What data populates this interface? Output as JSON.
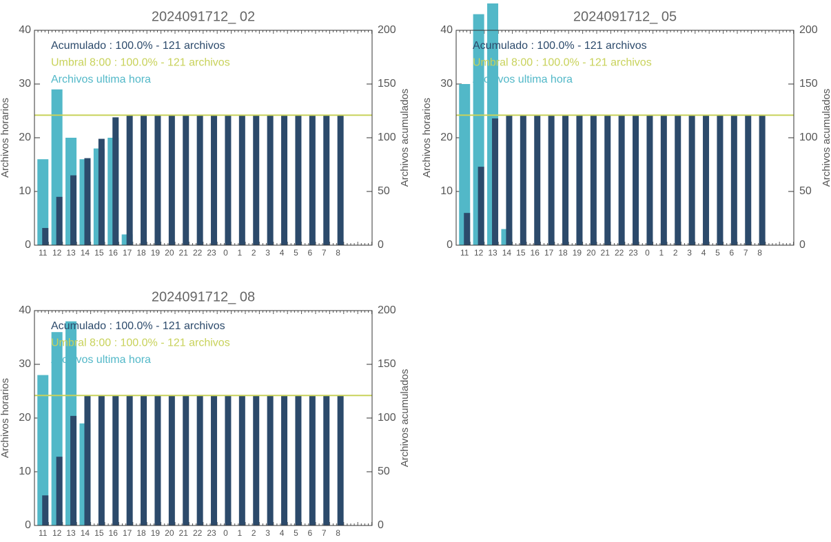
{
  "chart_data": [
    {
      "type": "bar",
      "title": "2024091712_ 02",
      "ylabel": "Archivos horarios",
      "y2label": "Archivos acumulados",
      "categories": [
        "11",
        "12",
        "13",
        "14",
        "15",
        "16",
        "17",
        "18",
        "19",
        "20",
        "21",
        "22",
        "23",
        "0",
        "1",
        "2",
        "3",
        "4",
        "5",
        "6",
        "7",
        "8"
      ],
      "series": [
        {
          "name": "Acumulado : 100.0% - 121 archivos",
          "color": "#2c4a6b",
          "axis": "y2",
          "values": [
            16,
            45,
            65,
            81,
            99,
            119,
            121,
            121,
            121,
            121,
            121,
            121,
            121,
            121,
            121,
            121,
            121,
            121,
            121,
            121,
            121,
            121
          ]
        },
        {
          "name": "Archivos ultima hora",
          "color": "#52b8c8",
          "axis": "y",
          "values": [
            16,
            29,
            20,
            16,
            18,
            20,
            2,
            0,
            0,
            0,
            0,
            0,
            0,
            0,
            0,
            0,
            0,
            0,
            0,
            0,
            0,
            0
          ]
        }
      ],
      "threshold": {
        "name": "Umbral 8:00 : 100.0% - 121 archivos",
        "color": "#c8d25a",
        "axis": "y2",
        "value": 121
      },
      "ylim": [
        0,
        40
      ],
      "yticks": [
        0,
        10,
        20,
        30,
        40
      ],
      "y2lim": [
        0,
        200
      ],
      "y2ticks": [
        0,
        50,
        100,
        150,
        200
      ]
    },
    {
      "type": "bar",
      "title": "2024091712_ 05",
      "ylabel": "Archivos horarios",
      "y2label": "Archivos acumulados",
      "categories": [
        "11",
        "12",
        "13",
        "14",
        "15",
        "16",
        "17",
        "18",
        "19",
        "20",
        "21",
        "22",
        "23",
        "0",
        "1",
        "2",
        "3",
        "4",
        "5",
        "6",
        "7",
        "8"
      ],
      "series": [
        {
          "name": "Acumulado : 100.0% - 121 archivos",
          "color": "#2c4a6b",
          "axis": "y2",
          "values": [
            30,
            73,
            118,
            121,
            121,
            121,
            121,
            121,
            121,
            121,
            121,
            121,
            121,
            121,
            121,
            121,
            121,
            121,
            121,
            121,
            121,
            121
          ]
        },
        {
          "name": "Archivos ultima hora",
          "color": "#52b8c8",
          "axis": "y",
          "values": [
            30,
            43,
            45,
            3,
            0,
            0,
            0,
            0,
            0,
            0,
            0,
            0,
            0,
            0,
            0,
            0,
            0,
            0,
            0,
            0,
            0,
            0
          ]
        }
      ],
      "threshold": {
        "name": "Umbral 8:00 : 100.0% - 121 archivos",
        "color": "#c8d25a",
        "axis": "y2",
        "value": 121
      },
      "ylim": [
        0,
        40
      ],
      "yticks": [
        0,
        10,
        20,
        30,
        40
      ],
      "y2lim": [
        0,
        200
      ],
      "y2ticks": [
        0,
        50,
        100,
        150,
        200
      ]
    },
    {
      "type": "bar",
      "title": "2024091712_ 08",
      "ylabel": "Archivos horarios",
      "y2label": "Archivos acumulados",
      "categories": [
        "11",
        "12",
        "13",
        "14",
        "15",
        "16",
        "17",
        "18",
        "19",
        "20",
        "21",
        "22",
        "23",
        "0",
        "1",
        "2",
        "3",
        "4",
        "5",
        "6",
        "7",
        "8"
      ],
      "series": [
        {
          "name": "Acumulado : 100.0% - 121 archivos",
          "color": "#2c4a6b",
          "axis": "y2",
          "values": [
            28,
            64,
            102,
            121,
            121,
            121,
            121,
            121,
            121,
            121,
            121,
            121,
            121,
            121,
            121,
            121,
            121,
            121,
            121,
            121,
            121,
            121
          ]
        },
        {
          "name": "Archivos ultima hora",
          "color": "#52b8c8",
          "axis": "y",
          "values": [
            28,
            36,
            38,
            19,
            0,
            0,
            0,
            0,
            0,
            0,
            0,
            0,
            0,
            0,
            0,
            0,
            0,
            0,
            0,
            0,
            0,
            0
          ]
        }
      ],
      "threshold": {
        "name": "Umbral 8:00 : 100.0% - 121 archivos",
        "color": "#c8d25a",
        "axis": "y2",
        "value": 121
      },
      "ylim": [
        0,
        40
      ],
      "yticks": [
        0,
        10,
        20,
        30,
        40
      ],
      "y2lim": [
        0,
        200
      ],
      "y2ticks": [
        0,
        50,
        100,
        150,
        200
      ]
    }
  ]
}
